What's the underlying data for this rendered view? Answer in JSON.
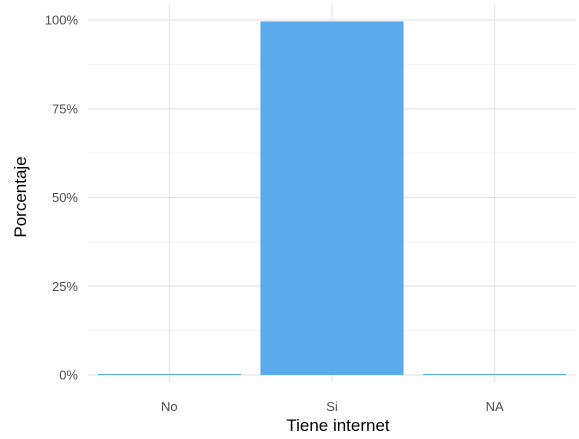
{
  "chart_data": {
    "type": "bar",
    "categories": [
      "No",
      "Si",
      "NA"
    ],
    "values": [
      0.2,
      99.6,
      0.1
    ],
    "xlabel": "Tiene internet",
    "ylabel": "Porcentaje",
    "ylim": [
      0,
      100
    ],
    "yticks": [
      "0%",
      "25%",
      "50%",
      "75%",
      "100%"
    ],
    "grid": true,
    "bar_color": "#5aaaec"
  }
}
